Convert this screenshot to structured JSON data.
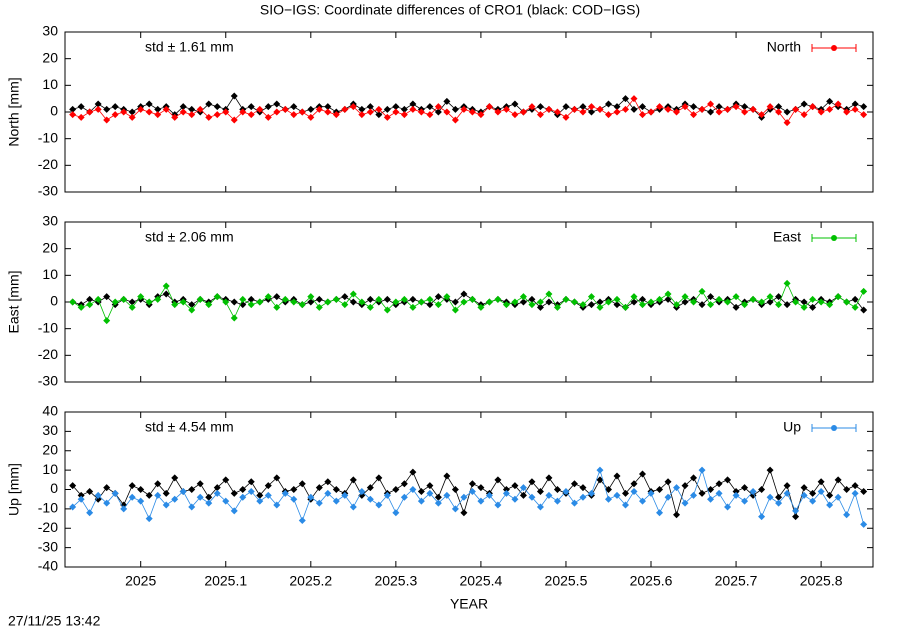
{
  "title": "SIO−IGS: Coordinate differences of CRO1 (black: COD−IGS)",
  "timestamp": "27/11/25 13:42",
  "chart_data": [
    {
      "type": "line",
      "ylabel": "North [mm]",
      "annotation": "std ± 1.61 mm",
      "xlim": [
        2024.911,
        2025.861
      ],
      "xticks": [
        2025,
        2025.1,
        2025.2,
        2025.3,
        2025.4,
        2025.5,
        2025.6,
        2025.7,
        2025.8
      ],
      "ylim": [
        -30,
        30
      ],
      "yticks": [
        -30,
        -20,
        -10,
        0,
        10,
        20,
        30
      ],
      "legend": "upper right",
      "x": [
        2024.92,
        2024.93,
        2024.94,
        2024.95,
        2024.96,
        2024.97,
        2024.98,
        2024.99,
        2025,
        2025.01,
        2025.02,
        2025.03,
        2025.04,
        2025.05,
        2025.06,
        2025.07,
        2025.08,
        2025.09,
        2025.1,
        2025.11,
        2025.12,
        2025.13,
        2025.14,
        2025.15,
        2025.16,
        2025.17,
        2025.18,
        2025.19,
        2025.2,
        2025.21,
        2025.22,
        2025.23,
        2025.24,
        2025.25,
        2025.26,
        2025.27,
        2025.28,
        2025.29,
        2025.3,
        2025.31,
        2025.32,
        2025.33,
        2025.34,
        2025.35,
        2025.36,
        2025.37,
        2025.38,
        2025.39,
        2025.4,
        2025.41,
        2025.42,
        2025.43,
        2025.44,
        2025.45,
        2025.46,
        2025.47,
        2025.48,
        2025.49,
        2025.5,
        2025.51,
        2025.52,
        2025.53,
        2025.54,
        2025.55,
        2025.56,
        2025.57,
        2025.58,
        2025.59,
        2025.6,
        2025.61,
        2025.62,
        2025.63,
        2025.64,
        2025.65,
        2025.66,
        2025.67,
        2025.68,
        2025.69,
        2025.7,
        2025.71,
        2025.72,
        2025.73,
        2025.74,
        2025.75,
        2025.76,
        2025.77,
        2025.78,
        2025.79,
        2025.8,
        2025.81,
        2025.82,
        2025.83,
        2025.84,
        2025.85
      ],
      "series": [
        {
          "color": "#000000",
          "values": [
            1,
            2,
            0,
            3,
            1,
            2,
            1,
            0,
            2,
            3,
            1,
            2,
            -1,
            2,
            1,
            0,
            3,
            2,
            1,
            6,
            1,
            2,
            0,
            2,
            3,
            1,
            2,
            0,
            1,
            2,
            2,
            0,
            1,
            3,
            1,
            2,
            -1,
            1,
            2,
            1,
            3,
            1,
            2,
            0,
            4,
            1,
            2,
            1,
            0,
            2,
            1,
            2,
            3,
            0,
            1,
            2,
            1,
            -1,
            2,
            1,
            2,
            0,
            1,
            3,
            2,
            5,
            1,
            2,
            0,
            1,
            2,
            1,
            3,
            2,
            1,
            0,
            2,
            1,
            3,
            2,
            1,
            -2,
            1,
            2,
            0,
            1,
            3,
            2,
            1,
            4,
            2,
            1,
            3,
            2
          ]
        },
        {
          "name": "North",
          "color": "#ff0000",
          "values": [
            -1,
            -2,
            0,
            1,
            -3,
            -1,
            0,
            -2,
            1,
            0,
            -1,
            1,
            -2,
            0,
            -1,
            1,
            -2,
            -1,
            0,
            -3,
            0,
            -1,
            1,
            -2,
            0,
            1,
            -1,
            0,
            -2,
            1,
            0,
            -1,
            1,
            2,
            -1,
            0,
            1,
            -2,
            0,
            -1,
            1,
            0,
            -1,
            2,
            0,
            -3,
            1,
            0,
            -1,
            2,
            0,
            1,
            -1,
            0,
            2,
            -1,
            1,
            0,
            -2,
            1,
            0,
            2,
            1,
            -1,
            0,
            1,
            5,
            -1,
            0,
            2,
            1,
            0,
            2,
            -1,
            1,
            3,
            0,
            1,
            2,
            0,
            1,
            -1,
            2,
            0,
            -4,
            1,
            -1,
            2,
            0,
            1,
            3,
            0,
            1,
            -1
          ]
        }
      ]
    },
    {
      "type": "line",
      "ylabel": "East [mm]",
      "annotation": "std ± 2.06 mm",
      "xlim": [
        2024.911,
        2025.861
      ],
      "xticks": [
        2025,
        2025.1,
        2025.2,
        2025.3,
        2025.4,
        2025.5,
        2025.6,
        2025.7,
        2025.8
      ],
      "ylim": [
        -30,
        30
      ],
      "yticks": [
        -30,
        -20,
        -10,
        0,
        10,
        20,
        30
      ],
      "legend": "upper right",
      "x": [
        2024.92,
        2024.93,
        2024.94,
        2024.95,
        2024.96,
        2024.97,
        2024.98,
        2024.99,
        2025,
        2025.01,
        2025.02,
        2025.03,
        2025.04,
        2025.05,
        2025.06,
        2025.07,
        2025.08,
        2025.09,
        2025.1,
        2025.11,
        2025.12,
        2025.13,
        2025.14,
        2025.15,
        2025.16,
        2025.17,
        2025.18,
        2025.19,
        2025.2,
        2025.21,
        2025.22,
        2025.23,
        2025.24,
        2025.25,
        2025.26,
        2025.27,
        2025.28,
        2025.29,
        2025.3,
        2025.31,
        2025.32,
        2025.33,
        2025.34,
        2025.35,
        2025.36,
        2025.37,
        2025.38,
        2025.39,
        2025.4,
        2025.41,
        2025.42,
        2025.43,
        2025.44,
        2025.45,
        2025.46,
        2025.47,
        2025.48,
        2025.49,
        2025.5,
        2025.51,
        2025.52,
        2025.53,
        2025.54,
        2025.55,
        2025.56,
        2025.57,
        2025.58,
        2025.59,
        2025.6,
        2025.61,
        2025.62,
        2025.63,
        2025.64,
        2025.65,
        2025.66,
        2025.67,
        2025.68,
        2025.69,
        2025.7,
        2025.71,
        2025.72,
        2025.73,
        2025.74,
        2025.75,
        2025.76,
        2025.77,
        2025.78,
        2025.79,
        2025.8,
        2025.81,
        2025.82,
        2025.83,
        2025.84,
        2025.85
      ],
      "series": [
        {
          "color": "#000000",
          "values": [
            0,
            -1,
            1,
            0,
            2,
            -1,
            1,
            0,
            1,
            -1,
            2,
            3,
            0,
            1,
            -1,
            1,
            0,
            2,
            1,
            0,
            -1,
            1,
            0,
            1,
            2,
            0,
            1,
            -1,
            0,
            1,
            0,
            1,
            2,
            0,
            -1,
            1,
            0,
            1,
            -1,
            0,
            1,
            0,
            -1,
            2,
            1,
            0,
            3,
            1,
            -1,
            0,
            1,
            0,
            -1,
            0,
            1,
            -2,
            0,
            -1,
            1,
            0,
            -2,
            -1,
            0,
            1,
            -1,
            -2,
            0,
            1,
            -1,
            0,
            1,
            -2,
            0,
            1,
            -1,
            2,
            0,
            1,
            -2,
            0,
            1,
            -1,
            0,
            2,
            -1,
            1,
            0,
            -2,
            1,
            0,
            2,
            0,
            1,
            -3
          ]
        },
        {
          "name": "East",
          "color": "#00c000",
          "values": [
            0,
            -2,
            -1,
            1,
            -7,
            0,
            1,
            -2,
            2,
            0,
            1,
            6,
            -1,
            0,
            -3,
            1,
            -1,
            2,
            0,
            -6,
            1,
            -1,
            0,
            2,
            -2,
            1,
            0,
            -1,
            2,
            -2,
            0,
            1,
            -1,
            3,
            0,
            -2,
            1,
            -3,
            0,
            1,
            -2,
            0,
            1,
            -1,
            2,
            -3,
            0,
            1,
            -2,
            0,
            1,
            -1,
            0,
            2,
            -1,
            0,
            3,
            -2,
            1,
            0,
            -1,
            2,
            -2,
            0,
            1,
            -2,
            2,
            -1,
            0,
            1,
            3,
            -1,
            2,
            0,
            4,
            -1,
            1,
            0,
            2,
            -1,
            1,
            0,
            2,
            -1,
            7,
            0,
            -2,
            1,
            0,
            -1,
            2,
            0,
            -2,
            4
          ]
        }
      ]
    },
    {
      "type": "line",
      "ylabel": "Up [mm]",
      "xlabel": "YEAR",
      "annotation": "std ± 4.54 mm",
      "xlim": [
        2024.911,
        2025.861
      ],
      "xticks": [
        2025,
        2025.1,
        2025.2,
        2025.3,
        2025.4,
        2025.5,
        2025.6,
        2025.7,
        2025.8
      ],
      "ylim": [
        -40,
        40
      ],
      "yticks": [
        -40,
        -30,
        -20,
        -10,
        0,
        10,
        20,
        30,
        40
      ],
      "legend": "upper right",
      "x": [
        2024.92,
        2024.93,
        2024.94,
        2024.95,
        2024.96,
        2024.97,
        2024.98,
        2024.99,
        2025,
        2025.01,
        2025.02,
        2025.03,
        2025.04,
        2025.05,
        2025.06,
        2025.07,
        2025.08,
        2025.09,
        2025.1,
        2025.11,
        2025.12,
        2025.13,
        2025.14,
        2025.15,
        2025.16,
        2025.17,
        2025.18,
        2025.19,
        2025.2,
        2025.21,
        2025.22,
        2025.23,
        2025.24,
        2025.25,
        2025.26,
        2025.27,
        2025.28,
        2025.29,
        2025.3,
        2025.31,
        2025.32,
        2025.33,
        2025.34,
        2025.35,
        2025.36,
        2025.37,
        2025.38,
        2025.39,
        2025.4,
        2025.41,
        2025.42,
        2025.43,
        2025.44,
        2025.45,
        2025.46,
        2025.47,
        2025.48,
        2025.49,
        2025.5,
        2025.51,
        2025.52,
        2025.53,
        2025.54,
        2025.55,
        2025.56,
        2025.57,
        2025.58,
        2025.59,
        2025.6,
        2025.61,
        2025.62,
        2025.63,
        2025.64,
        2025.65,
        2025.66,
        2025.67,
        2025.68,
        2025.69,
        2025.7,
        2025.71,
        2025.72,
        2025.73,
        2025.74,
        2025.75,
        2025.76,
        2025.77,
        2025.78,
        2025.79,
        2025.8,
        2025.81,
        2025.82,
        2025.83,
        2025.84,
        2025.85
      ],
      "series": [
        {
          "color": "#000000",
          "values": [
            2,
            -3,
            -1,
            -5,
            1,
            -2,
            -8,
            2,
            0,
            -3,
            3,
            -2,
            6,
            -1,
            0,
            3,
            -4,
            1,
            5,
            -2,
            0,
            4,
            -3,
            2,
            6,
            -1,
            0,
            3,
            -5,
            1,
            4,
            0,
            -2,
            5,
            -3,
            1,
            6,
            -2,
            0,
            3,
            9,
            -1,
            2,
            -4,
            7,
            0,
            -12,
            3,
            1,
            -2,
            5,
            0,
            2,
            -3,
            4,
            -1,
            6,
            0,
            -2,
            3,
            1,
            -3,
            5,
            0,
            7,
            -2,
            3,
            8,
            -1,
            0,
            4,
            -13,
            2,
            6,
            -2,
            0,
            3,
            5,
            -1,
            1,
            -3,
            0,
            10,
            -4,
            2,
            -14,
            1,
            -2,
            4,
            -3,
            5,
            0,
            2,
            -1
          ]
        },
        {
          "name": "Up",
          "color": "#2b8be6",
          "values": [
            -9,
            -5,
            -12,
            -3,
            -7,
            -2,
            -10,
            -4,
            -6,
            -15,
            -3,
            -8,
            -5,
            -1,
            -9,
            -4,
            -7,
            -2,
            -6,
            -11,
            -4,
            -1,
            -6,
            -3,
            -8,
            -2,
            -5,
            -16,
            -4,
            -7,
            -2,
            -6,
            -3,
            -9,
            -1,
            -5,
            -8,
            -3,
            -12,
            -4,
            0,
            -6,
            -2,
            -7,
            -3,
            -10,
            -4,
            -1,
            -6,
            -3,
            -8,
            -2,
            -5,
            1,
            -4,
            -9,
            -3,
            -6,
            -1,
            -7,
            -4,
            -2,
            10,
            -5,
            -3,
            -8,
            -1,
            -6,
            -2,
            -12,
            -4,
            1,
            -7,
            -3,
            10,
            -5,
            -2,
            -9,
            -3,
            -6,
            -1,
            -14,
            -4,
            -7,
            -2,
            -11,
            -3,
            -6,
            -1,
            -8,
            -4,
            -13,
            -2,
            -18
          ]
        }
      ]
    }
  ]
}
